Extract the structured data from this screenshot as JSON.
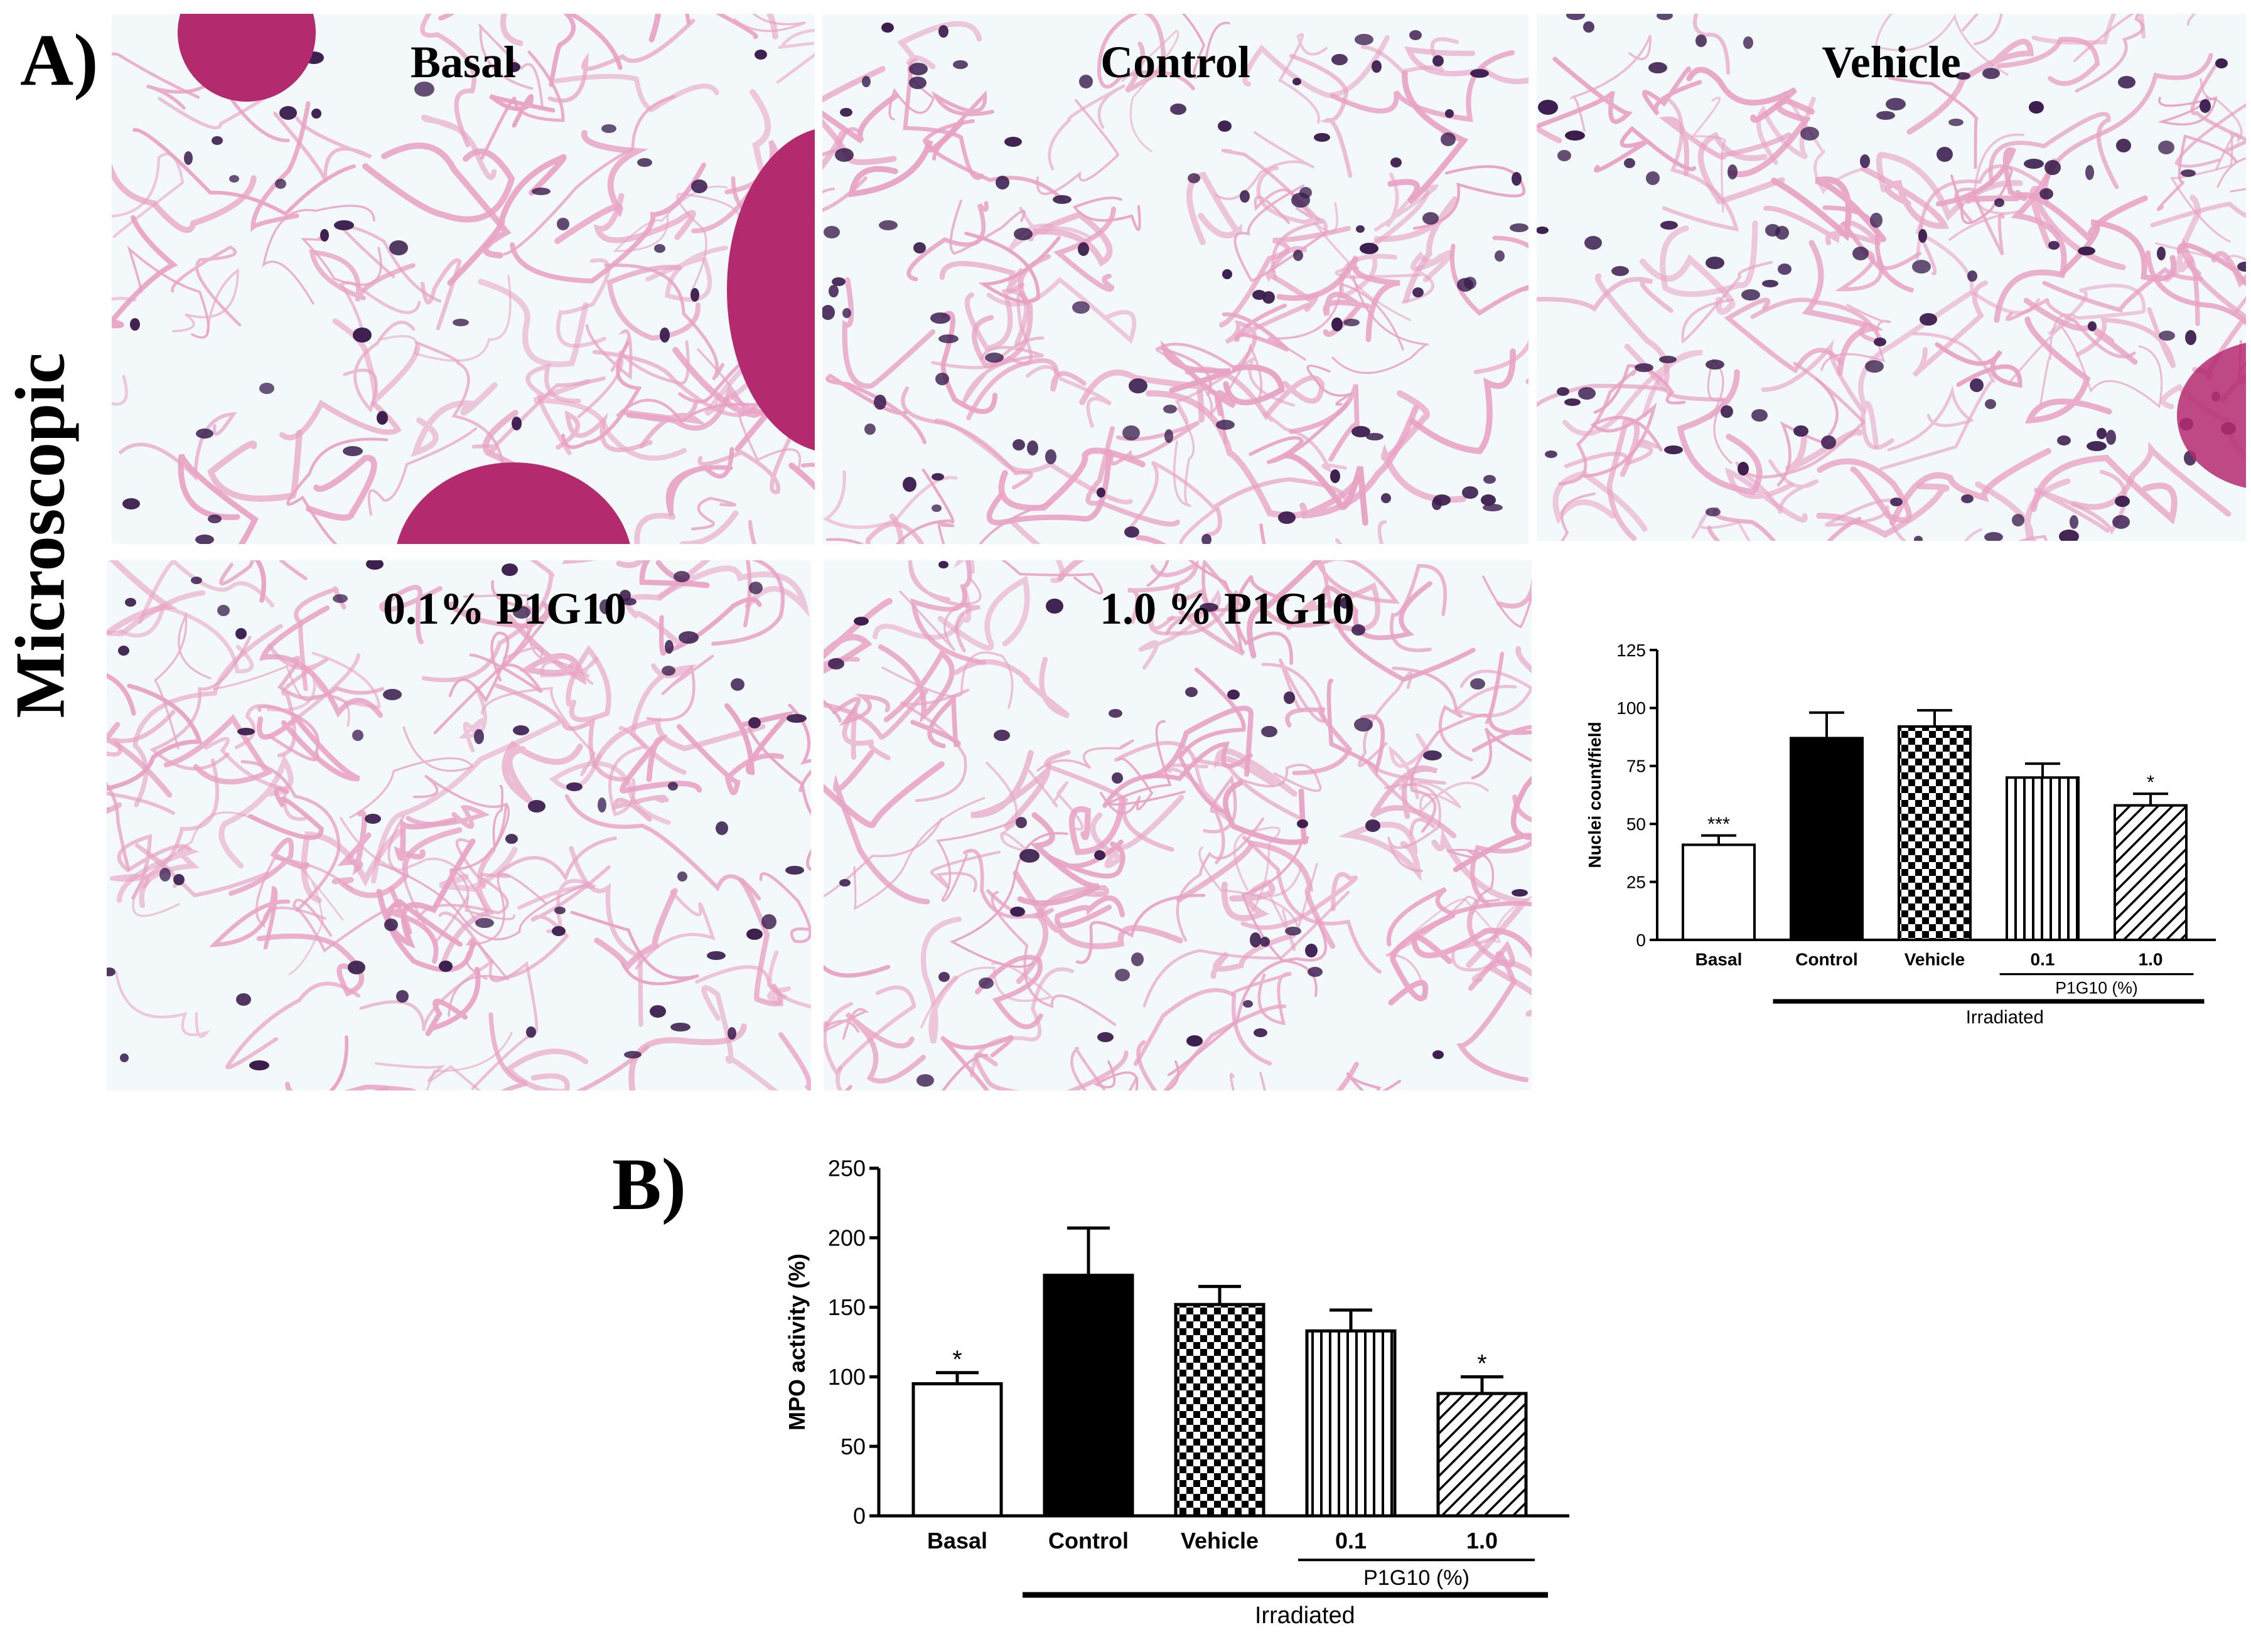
{
  "figure": {
    "panel_a_label": "A)",
    "panel_b_label": "B)",
    "side_label": "Microscopic"
  },
  "micrographs": [
    {
      "title": "Basal"
    },
    {
      "title": "Control"
    },
    {
      "title": "Vehicle"
    },
    {
      "title": "0.1% P1G10"
    },
    {
      "title": "1.0 % P1G10"
    }
  ],
  "colors": {
    "tissue_pink": "#e8a2c4",
    "nucleus_dark": "#3b1d4e",
    "follicle_magenta": "#b42a6e",
    "background_pale": "#f3f9fb"
  },
  "chart_data": [
    {
      "type": "bar",
      "panel": "A",
      "categories": [
        "Basal",
        "Control",
        "Vehicle",
        "0.1",
        "1.0"
      ],
      "values": [
        41,
        87,
        92,
        70,
        58
      ],
      "errors": [
        4,
        11,
        7,
        6,
        5
      ],
      "significance": [
        "***",
        "",
        "",
        "",
        "*"
      ],
      "fills": [
        "white",
        "black",
        "checker",
        "vertical-lines",
        "diagonal-lines"
      ],
      "ylabel": "Nuclei count/field",
      "ylim": [
        0,
        125
      ],
      "yticks": [
        0,
        25,
        50,
        75,
        100,
        125
      ],
      "group_label": "P1G10 (%)",
      "bracket_label": "Irradiated",
      "grid": false
    },
    {
      "type": "bar",
      "panel": "B",
      "categories": [
        "Basal",
        "Control",
        "Vehicle",
        "0.1",
        "1.0"
      ],
      "values": [
        95,
        173,
        152,
        133,
        88
      ],
      "errors": [
        8,
        34,
        13,
        15,
        12
      ],
      "significance": [
        "*",
        "",
        "",
        "",
        "*"
      ],
      "fills": [
        "white",
        "black",
        "checker",
        "vertical-lines",
        "diagonal-lines"
      ],
      "ylabel": "MPO activity (%)",
      "ylim": [
        0,
        250
      ],
      "yticks": [
        0,
        50,
        100,
        150,
        200,
        250
      ],
      "group_label": "P1G10 (%)",
      "bracket_label": "Irradiated",
      "grid": false
    }
  ]
}
